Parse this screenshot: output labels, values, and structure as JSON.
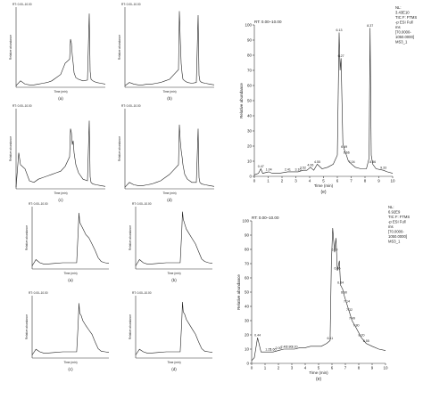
{
  "chart_data": [
    {
      "panel": "(a)",
      "group": "top",
      "type": "line",
      "header": "RT: 0.00–10.00",
      "ylabel": "Relative abundance",
      "xlabel": "Time (min)",
      "caption": "(a)",
      "x": [
        0,
        0.5,
        1,
        1.5,
        2,
        2.5,
        3,
        3.5,
        4,
        4.5,
        5,
        5.5,
        6,
        6.1,
        6.2,
        6.3,
        6.4,
        6.5,
        6.7,
        7,
        7.5,
        8,
        8.2,
        8.3,
        8.4,
        8.6,
        9,
        9.5,
        10
      ],
      "y": [
        2,
        8,
        4,
        3,
        3,
        4,
        5,
        6,
        8,
        12,
        16,
        30,
        35,
        60,
        55,
        40,
        30,
        18,
        12,
        10,
        8,
        9,
        92,
        20,
        10,
        8,
        6,
        5,
        4
      ],
      "xlim": [
        0,
        10
      ],
      "ylim": [
        0,
        100
      ]
    },
    {
      "panel": "(b)",
      "group": "top",
      "type": "line",
      "header": "RT: 0.00–10.00",
      "ylabel": "Relative abundance",
      "xlabel": "Time (min)",
      "caption": "(b)",
      "x": [
        0,
        0.5,
        1,
        1.5,
        2,
        2.5,
        3,
        3.5,
        4,
        4.5,
        5,
        5.5,
        6,
        6.1,
        6.2,
        6.3,
        6.4,
        6.5,
        6.7,
        7,
        7.5,
        8,
        8.2,
        8.3,
        8.4,
        8.6,
        9,
        9.5,
        10
      ],
      "y": [
        2,
        6,
        4,
        3,
        3,
        4,
        4,
        5,
        6,
        8,
        10,
        16,
        22,
        95,
        60,
        30,
        18,
        10,
        8,
        6,
        5,
        6,
        90,
        15,
        8,
        6,
        5,
        4,
        3
      ],
      "xlim": [
        0,
        10
      ],
      "ylim": [
        0,
        100
      ]
    },
    {
      "panel": "(c)",
      "group": "top",
      "type": "line",
      "header": "RT: 0.00–10.00",
      "ylabel": "Relative abundance",
      "xlabel": "Time (min)",
      "caption": "(c)",
      "x": [
        0,
        0.3,
        0.5,
        1,
        1.5,
        2,
        2.5,
        3,
        3.5,
        4,
        4.5,
        5,
        5.5,
        6,
        6.1,
        6.2,
        6.3,
        6.4,
        6.5,
        6.7,
        7,
        7.5,
        8,
        8.2,
        8.3,
        8.4,
        8.6,
        9,
        9.5,
        10
      ],
      "y": [
        2,
        45,
        30,
        25,
        10,
        8,
        12,
        14,
        16,
        18,
        20,
        22,
        28,
        40,
        75,
        70,
        55,
        60,
        45,
        30,
        20,
        12,
        10,
        85,
        15,
        8,
        6,
        5,
        4,
        3
      ],
      "xlim": [
        0,
        10
      ],
      "ylim": [
        0,
        100
      ]
    },
    {
      "panel": "(d)",
      "group": "top",
      "type": "line",
      "header": "RT: 0.00–10.00",
      "ylabel": "Relative abundance",
      "xlabel": "Time (min)",
      "caption": "(d)",
      "x": [
        0,
        0.5,
        1,
        1.5,
        2,
        2.5,
        3,
        3.5,
        4,
        4.5,
        5,
        5.5,
        6,
        6.1,
        6.2,
        6.3,
        6.4,
        6.5,
        6.7,
        7,
        7.5,
        8,
        8.2,
        8.3,
        8.4,
        8.6,
        9,
        9.5,
        10
      ],
      "y": [
        2,
        8,
        5,
        4,
        4,
        5,
        6,
        8,
        10,
        14,
        18,
        24,
        30,
        80,
        60,
        48,
        40,
        30,
        18,
        12,
        8,
        8,
        75,
        14,
        8,
        6,
        5,
        4,
        3
      ],
      "xlim": [
        0,
        10
      ],
      "ylim": [
        0,
        100
      ]
    },
    {
      "panel": "(e)",
      "group": "top",
      "type": "line",
      "header": "RT: 0.00–10.00",
      "annotation": [
        "NL:",
        "3.43E10",
        "TIC F: FTMS",
        "-p ESI Full",
        "ms",
        "[70.0000-",
        "1050.0000]",
        "MS3_1"
      ],
      "ylabel": "Relative abundance",
      "xlabel": "Time (min)",
      "caption": "(e)",
      "peak_labels": [
        {
          "x": 0.47,
          "text": "0.47"
        },
        {
          "x": 1.04,
          "text": "1.04"
        },
        {
          "x": 2.41,
          "text": "2.41"
        },
        {
          "x": 3.16,
          "text": "3.16"
        },
        {
          "x": 3.52,
          "text": "3.52"
        },
        {
          "x": 4.06,
          "text": "4.06"
        },
        {
          "x": 4.55,
          "text": "4.55"
        },
        {
          "x": 6.13,
          "text": "6.13"
        },
        {
          "x": 6.27,
          "text": "6.27"
        },
        {
          "x": 6.49,
          "text": "6.49"
        },
        {
          "x": 6.66,
          "text": "6.66"
        },
        {
          "x": 7.04,
          "text": "7.04"
        },
        {
          "x": 8.37,
          "text": "8.37"
        },
        {
          "x": 8.56,
          "text": "8.56"
        },
        {
          "x": 9.33,
          "text": "9.33"
        }
      ],
      "x": [
        0,
        0.3,
        0.47,
        0.6,
        1.04,
        1.3,
        1.8,
        2.41,
        2.8,
        3.16,
        3.52,
        3.8,
        4.06,
        4.3,
        4.55,
        4.9,
        5.3,
        5.7,
        6.0,
        6.13,
        6.2,
        6.27,
        6.4,
        6.49,
        6.66,
        6.8,
        7.04,
        7.3,
        7.7,
        8.1,
        8.3,
        8.37,
        8.45,
        8.56,
        8.8,
        9.33,
        9.6,
        10
      ],
      "y": [
        1,
        2,
        5,
        2,
        3,
        2,
        2,
        3,
        3,
        3,
        4,
        4,
        6,
        4,
        8,
        5,
        6,
        8,
        14,
        95,
        70,
        78,
        22,
        18,
        14,
        10,
        8,
        6,
        5,
        5,
        12,
        98,
        14,
        8,
        5,
        4,
        3,
        2
      ],
      "xlim": [
        0,
        10
      ],
      "ylim": [
        0,
        100
      ],
      "yticks": [
        0,
        10,
        20,
        30,
        40,
        50,
        60,
        70,
        80,
        90,
        100
      ],
      "xticks": [
        0,
        1,
        2,
        3,
        4,
        5,
        6,
        7,
        8,
        9,
        10
      ]
    },
    {
      "panel": "(a)",
      "group": "bottom",
      "type": "line",
      "header": "RT: 0.00–10.00",
      "ylabel": "Relative abundance",
      "xlabel": "Time (min)",
      "caption": "(a)",
      "x": [
        0,
        0.5,
        1,
        1.5,
        2,
        3,
        4,
        5,
        5.8,
        6.0,
        6.1,
        6.2,
        6.4,
        6.6,
        7,
        7.4,
        7.8,
        8.2,
        8.6,
        9,
        9.5,
        10
      ],
      "y": [
        5,
        15,
        10,
        8,
        8,
        9,
        10,
        10,
        10,
        60,
        90,
        75,
        70,
        65,
        55,
        50,
        40,
        30,
        18,
        12,
        10,
        9
      ],
      "xlim": [
        0,
        10
      ],
      "ylim": [
        0,
        100
      ]
    },
    {
      "panel": "(b)",
      "group": "bottom",
      "type": "line",
      "header": "RT: 0.00–10.00",
      "ylabel": "Relative abundance",
      "xlabel": "Time (min)",
      "caption": "(b)",
      "x": [
        0,
        0.5,
        1,
        1.5,
        2,
        3,
        4,
        5,
        5.8,
        6.0,
        6.1,
        6.2,
        6.4,
        6.6,
        7,
        7.4,
        7.8,
        8.2,
        8.6,
        9,
        9.5,
        10
      ],
      "y": [
        5,
        15,
        10,
        8,
        8,
        9,
        10,
        10,
        10,
        58,
        92,
        80,
        72,
        64,
        56,
        48,
        40,
        28,
        16,
        12,
        10,
        9
      ],
      "xlim": [
        0,
        10
      ],
      "ylim": [
        0,
        100
      ]
    },
    {
      "panel": "(c)",
      "group": "bottom",
      "type": "line",
      "header": "RT: 0.00–10.00",
      "ylabel": "Relative abundance",
      "xlabel": "Time (min)",
      "caption": "(c)",
      "x": [
        0,
        0.5,
        1,
        1.5,
        2,
        3,
        4,
        5,
        5.8,
        6.0,
        6.1,
        6.2,
        6.4,
        6.6,
        7,
        7.4,
        7.8,
        8.2,
        8.6,
        9,
        9.5,
        10
      ],
      "y": [
        5,
        14,
        10,
        8,
        8,
        9,
        10,
        10,
        10,
        55,
        88,
        72,
        68,
        60,
        52,
        45,
        38,
        26,
        15,
        11,
        10,
        9
      ],
      "xlim": [
        0,
        10
      ],
      "ylim": [
        0,
        100
      ]
    },
    {
      "panel": "(d)",
      "group": "bottom",
      "type": "line",
      "header": "RT: 0.00–10.00",
      "ylabel": "Relative abundance",
      "xlabel": "Time (min)",
      "caption": "(d)",
      "x": [
        0,
        0.5,
        1,
        1.5,
        2,
        3,
        4,
        5,
        5.8,
        6.0,
        6.1,
        6.2,
        6.4,
        6.6,
        7,
        7.4,
        7.8,
        8.2,
        8.6,
        9,
        9.5,
        10
      ],
      "y": [
        5,
        14,
        10,
        8,
        8,
        9,
        10,
        10,
        10,
        56,
        90,
        74,
        70,
        62,
        54,
        46,
        38,
        26,
        15,
        11,
        10,
        9
      ],
      "xlim": [
        0,
        10
      ],
      "ylim": [
        0,
        100
      ]
    },
    {
      "panel": "(e)",
      "group": "bottom",
      "type": "line",
      "header": "RT: 0.00–10.00",
      "annotation": [
        "NL:",
        "6.92E9",
        "TIC F: FTMS",
        "-p ESI Full",
        "ms",
        "[70.0000-",
        "1050.0000]",
        "MS3_1"
      ],
      "ylabel": "Relative abundance",
      "xlabel": "Time (min)",
      "caption": "(e)",
      "peak_labels": [
        {
          "x": 0.44,
          "text": "0.44"
        },
        {
          "x": 1.25,
          "text": "1.25"
        },
        {
          "x": 1.6,
          "text": "1.60"
        },
        {
          "x": 2.0,
          "text": "2.00"
        },
        {
          "x": 2.4,
          "text": "2.40"
        },
        {
          "x": 2.8,
          "text": "2.80"
        },
        {
          "x": 3.2,
          "text": "3.20"
        },
        {
          "x": 5.86,
          "text": "6.11"
        },
        {
          "x": 6.19,
          "text": "6.19"
        },
        {
          "x": 6.4,
          "text": "6.36"
        },
        {
          "x": 6.64,
          "text": "6.64"
        },
        {
          "x": 6.9,
          "text": "6.90"
        },
        {
          "x": 7.1,
          "text": "7.14"
        },
        {
          "x": 7.3,
          "text": "7.32"
        },
        {
          "x": 7.5,
          "text": "7.49"
        },
        {
          "x": 7.8,
          "text": "7.80"
        },
        {
          "x": 8.2,
          "text": "8.20"
        },
        {
          "x": 8.55,
          "text": "8.55"
        }
      ],
      "x": [
        0,
        0.2,
        0.44,
        0.7,
        1.0,
        1.25,
        1.6,
        2.0,
        2.4,
        2.8,
        3.2,
        3.6,
        4.0,
        4.4,
        4.8,
        5.2,
        5.6,
        5.86,
        5.95,
        6.05,
        6.19,
        6.3,
        6.4,
        6.55,
        6.64,
        6.8,
        6.9,
        7.1,
        7.3,
        7.5,
        7.8,
        8.2,
        8.55,
        9.0,
        9.5,
        10
      ],
      "y": [
        2,
        4,
        18,
        8,
        8,
        8,
        8,
        9,
        10,
        10,
        10,
        11,
        11,
        12,
        12,
        12,
        14,
        16,
        70,
        95,
        78,
        88,
        65,
        72,
        55,
        52,
        48,
        42,
        36,
        30,
        25,
        18,
        14,
        12,
        10,
        9
      ],
      "xlim": [
        0,
        10
      ],
      "ylim": [
        0,
        100
      ],
      "yticks": [
        0,
        10,
        20,
        30,
        40,
        50,
        60,
        70,
        80,
        90,
        100
      ],
      "xticks": [
        0,
        1,
        2,
        3,
        4,
        5,
        6,
        7,
        8,
        9,
        10
      ]
    }
  ]
}
